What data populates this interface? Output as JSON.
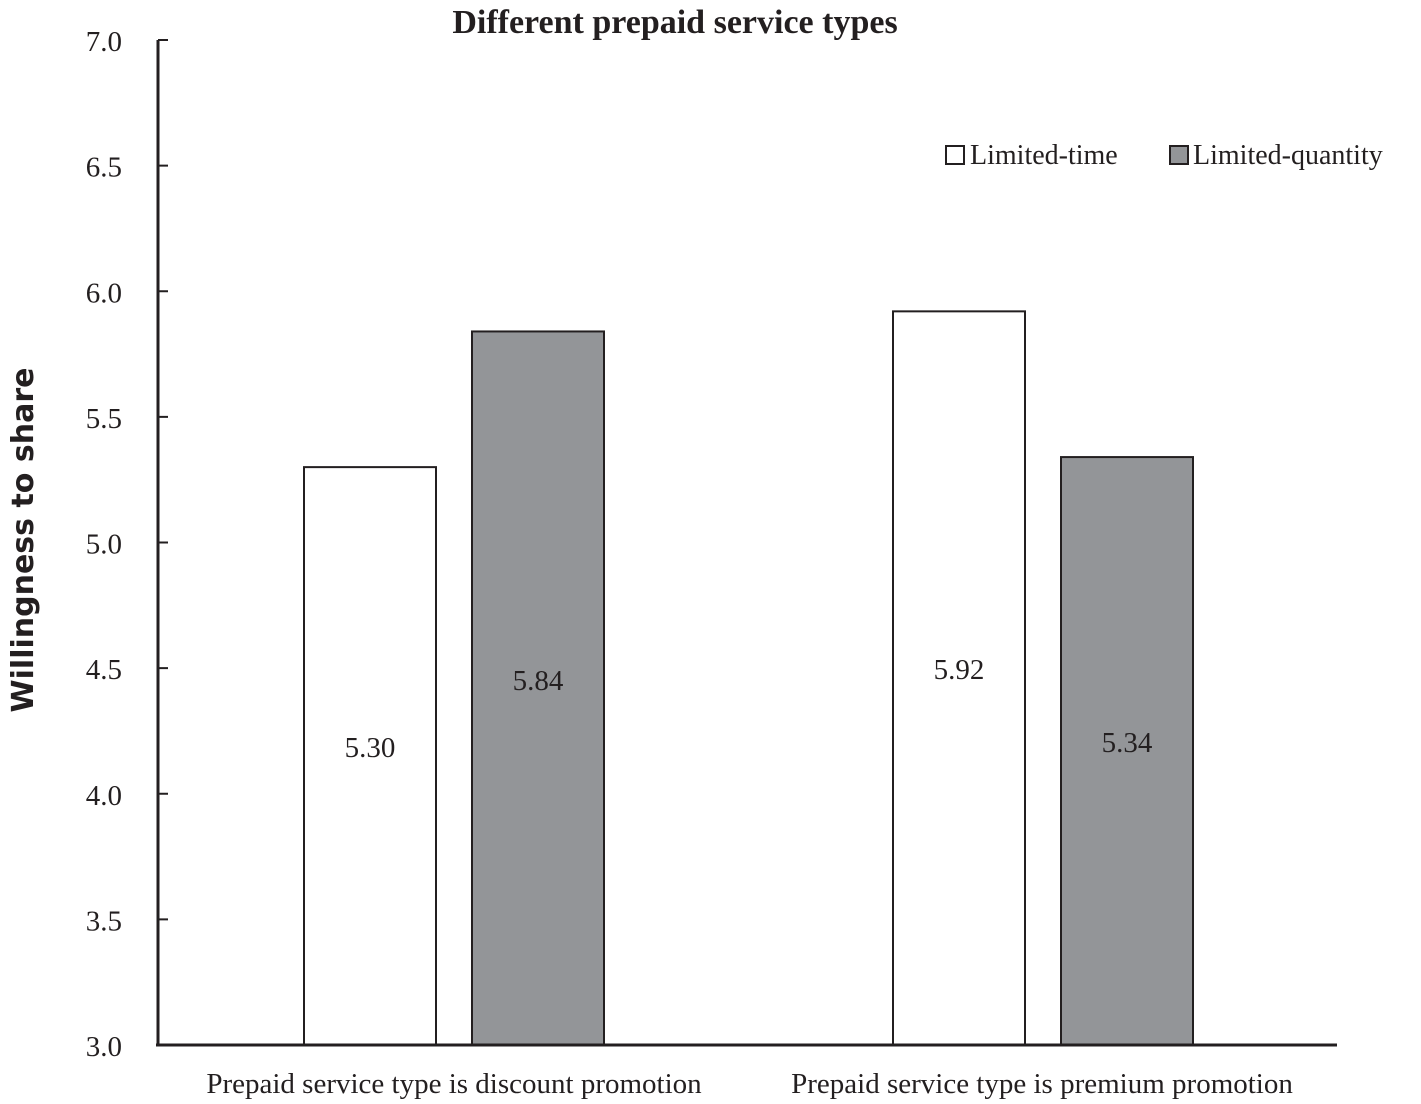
{
  "chart_data": {
    "type": "bar",
    "title": "Different prepaid service types",
    "xlabel": "",
    "ylabel": "Willingness to share",
    "ylim": [
      3.0,
      7.0
    ],
    "yticks": [
      "3.0",
      "3.5",
      "4.0",
      "4.5",
      "5.0",
      "5.5",
      "6.0",
      "6.5",
      "7.0"
    ],
    "categories": [
      "Prepaid service type is discount promotion",
      "Prepaid service type is premium promotion"
    ],
    "series": [
      {
        "name": "Limited-time",
        "values": [
          5.3,
          5.92
        ],
        "labels": [
          "5.30",
          "5.92"
        ],
        "color": "#ffffff"
      },
      {
        "name": "Limited-quantity",
        "values": [
          5.84,
          5.34
        ],
        "labels": [
          "5.84",
          "5.34"
        ],
        "color": "#939598"
      }
    ],
    "legend_position": "top-right",
    "grid": false
  }
}
